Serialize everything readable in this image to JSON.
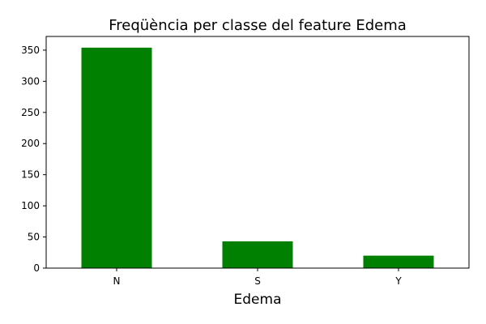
{
  "chart_data": {
    "type": "bar",
    "title": "Freqüència per classe del feature Edema",
    "xlabel": "Edema",
    "ylabel": "",
    "categories": [
      "N",
      "S",
      "Y"
    ],
    "values": [
      354,
      43,
      20
    ],
    "ylim": [
      0,
      372
    ],
    "yticks": [
      0,
      50,
      100,
      150,
      200,
      250,
      300,
      350
    ],
    "bar_color": "#008000",
    "grid": false,
    "legend": false
  }
}
